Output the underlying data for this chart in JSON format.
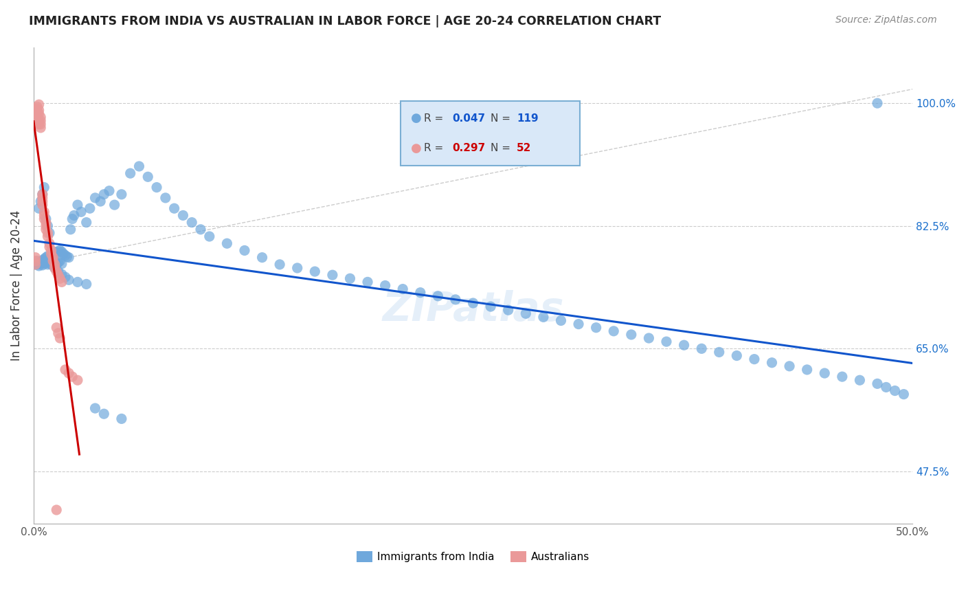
{
  "title": "IMMIGRANTS FROM INDIA VS AUSTRALIAN IN LABOR FORCE | AGE 20-24 CORRELATION CHART",
  "source": "Source: ZipAtlas.com",
  "ylabel": "In Labor Force | Age 20-24",
  "xlim": [
    0.0,
    0.5
  ],
  "ylim": [
    0.4,
    1.08
  ],
  "ytick_positions": [
    0.475,
    0.65,
    0.825,
    1.0
  ],
  "ytick_labels": [
    "47.5%",
    "65.0%",
    "82.5%",
    "100.0%"
  ],
  "blue_color": "#6FA8DC",
  "pink_color": "#EA9999",
  "blue_line_color": "#1155CC",
  "pink_line_color": "#CC0000",
  "diagonal_color": "#CCCCCC",
  "legend_box_facecolor": "#D9E8F8",
  "legend_box_edgecolor": "#7BAFD4",
  "R_blue": 0.047,
  "N_blue": 119,
  "R_pink": 0.297,
  "N_pink": 52,
  "blue_scatter_x": [
    0.001,
    0.002,
    0.002,
    0.003,
    0.003,
    0.004,
    0.004,
    0.005,
    0.005,
    0.005,
    0.006,
    0.006,
    0.007,
    0.007,
    0.008,
    0.008,
    0.009,
    0.009,
    0.01,
    0.01,
    0.011,
    0.011,
    0.012,
    0.012,
    0.013,
    0.013,
    0.014,
    0.014,
    0.015,
    0.015,
    0.016,
    0.016,
    0.017,
    0.018,
    0.019,
    0.02,
    0.021,
    0.022,
    0.023,
    0.025,
    0.027,
    0.03,
    0.032,
    0.035,
    0.038,
    0.04,
    0.043,
    0.046,
    0.05,
    0.055,
    0.06,
    0.065,
    0.07,
    0.075,
    0.08,
    0.085,
    0.09,
    0.095,
    0.1,
    0.11,
    0.12,
    0.13,
    0.14,
    0.15,
    0.16,
    0.17,
    0.18,
    0.19,
    0.2,
    0.21,
    0.22,
    0.23,
    0.24,
    0.25,
    0.26,
    0.27,
    0.28,
    0.29,
    0.3,
    0.31,
    0.32,
    0.33,
    0.34,
    0.35,
    0.36,
    0.37,
    0.38,
    0.39,
    0.4,
    0.41,
    0.42,
    0.43,
    0.44,
    0.45,
    0.46,
    0.47,
    0.48,
    0.485,
    0.49,
    0.495,
    0.003,
    0.004,
    0.005,
    0.006,
    0.007,
    0.008,
    0.009,
    0.01,
    0.012,
    0.014,
    0.016,
    0.018,
    0.02,
    0.025,
    0.03,
    0.035,
    0.04,
    0.05,
    0.48
  ],
  "blue_scatter_y": [
    0.77,
    0.77,
    0.775,
    0.772,
    0.768,
    0.774,
    0.771,
    0.769,
    0.776,
    0.773,
    0.778,
    0.771,
    0.78,
    0.775,
    0.782,
    0.77,
    0.778,
    0.772,
    0.784,
    0.776,
    0.786,
    0.773,
    0.788,
    0.774,
    0.787,
    0.77,
    0.789,
    0.773,
    0.79,
    0.775,
    0.788,
    0.771,
    0.785,
    0.783,
    0.781,
    0.78,
    0.82,
    0.835,
    0.84,
    0.855,
    0.845,
    0.83,
    0.85,
    0.865,
    0.86,
    0.87,
    0.875,
    0.855,
    0.87,
    0.9,
    0.91,
    0.895,
    0.88,
    0.865,
    0.85,
    0.84,
    0.83,
    0.82,
    0.81,
    0.8,
    0.79,
    0.78,
    0.77,
    0.765,
    0.76,
    0.755,
    0.75,
    0.745,
    0.74,
    0.735,
    0.73,
    0.725,
    0.72,
    0.715,
    0.71,
    0.705,
    0.7,
    0.695,
    0.69,
    0.685,
    0.68,
    0.675,
    0.67,
    0.665,
    0.66,
    0.655,
    0.65,
    0.645,
    0.64,
    0.635,
    0.63,
    0.625,
    0.62,
    0.615,
    0.61,
    0.605,
    0.6,
    0.595,
    0.59,
    0.585,
    0.85,
    0.86,
    0.87,
    0.88,
    0.835,
    0.825,
    0.815,
    0.77,
    0.765,
    0.76,
    0.756,
    0.752,
    0.748,
    0.745,
    0.742,
    0.565,
    0.557,
    0.55,
    1.0
  ],
  "pink_scatter_x": [
    0.001,
    0.001,
    0.001,
    0.001,
    0.001,
    0.002,
    0.002,
    0.002,
    0.002,
    0.002,
    0.002,
    0.003,
    0.003,
    0.003,
    0.003,
    0.003,
    0.004,
    0.004,
    0.004,
    0.004,
    0.005,
    0.005,
    0.005,
    0.005,
    0.006,
    0.006,
    0.006,
    0.007,
    0.007,
    0.007,
    0.008,
    0.008,
    0.009,
    0.009,
    0.01,
    0.01,
    0.011,
    0.011,
    0.012,
    0.012,
    0.013,
    0.014,
    0.015,
    0.016,
    0.018,
    0.02,
    0.022,
    0.025,
    0.013,
    0.014,
    0.015,
    0.013
  ],
  "pink_scatter_y": [
    0.77,
    0.775,
    0.78,
    0.985,
    0.99,
    0.995,
    0.985,
    0.992,
    0.988,
    0.982,
    0.978,
    0.998,
    0.99,
    0.985,
    0.975,
    0.97,
    0.98,
    0.975,
    0.97,
    0.965,
    0.87,
    0.865,
    0.86,
    0.855,
    0.845,
    0.84,
    0.835,
    0.83,
    0.825,
    0.82,
    0.815,
    0.81,
    0.8,
    0.795,
    0.79,
    0.785,
    0.78,
    0.775,
    0.77,
    0.765,
    0.76,
    0.755,
    0.75,
    0.745,
    0.62,
    0.615,
    0.61,
    0.605,
    0.68,
    0.672,
    0.665,
    0.42
  ]
}
